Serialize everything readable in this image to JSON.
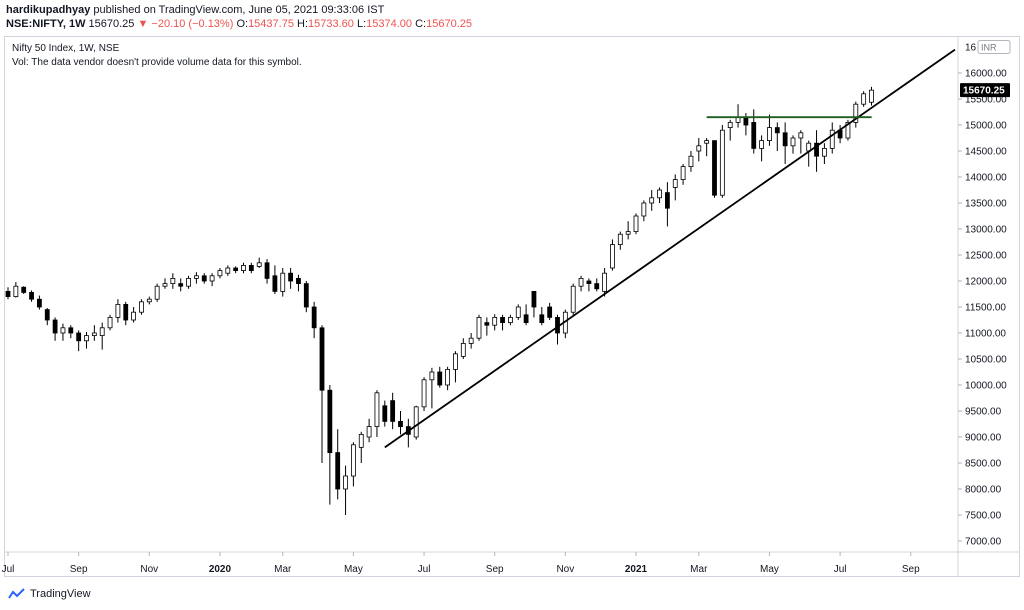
{
  "header": {
    "author": "hardikupadhyay",
    "published_text": "published on TradingView.com, June 05, 2021 09:33:06 IST",
    "symbol": "NSE:NIFTY, 1W",
    "last": "15670.25",
    "change_arrow": "▼",
    "change": "−20.10 (−0.13%)",
    "o_label": "O:",
    "o_value": "15437.75",
    "h_label": "H:",
    "h_value": "15733.60",
    "l_label": "L:",
    "l_value": "15374.00",
    "c_label": "C:",
    "c_value": "15670.25"
  },
  "legend": {
    "title": "Nifty 50 Index, 1W, NSE",
    "volume_note": "Vol: The data vendor doesn't provide volume data for this symbol."
  },
  "footer": {
    "brand": "TradingView"
  },
  "colors": {
    "up_body": "#ffffff",
    "down_body": "#000000",
    "wick": "#000000",
    "trendline": "#000000",
    "resistance": "#1b5e20",
    "price_tag_bg": "#000000",
    "price_tag_text": "#ffffff"
  },
  "chart_data": {
    "type": "candlestick",
    "currency": "INR",
    "ylim": [
      6700,
      16500
    ],
    "y_ticks": [
      "7000.00",
      "7500.00",
      "8000.00",
      "8500.00",
      "9000.00",
      "9500.00",
      "10000.00",
      "10500.00",
      "11000.00",
      "11500.00",
      "12000.00",
      "12500.00",
      "13000.00",
      "13500.00",
      "14000.00",
      "14500.00",
      "15000.00",
      "15500.00",
      "16000.00"
    ],
    "y_top_label": "16",
    "last_price_label": "15670.25",
    "last_price": 15670.25,
    "x_ticks": [
      {
        "label": "Jul",
        "bar": 0,
        "bold": false
      },
      {
        "label": "Sep",
        "bar": 9,
        "bold": false
      },
      {
        "label": "Nov",
        "bar": 18,
        "bold": false
      },
      {
        "label": "2020",
        "bar": 27,
        "bold": true
      },
      {
        "label": "Mar",
        "bar": 35,
        "bold": false
      },
      {
        "label": "May",
        "bar": 44,
        "bold": false
      },
      {
        "label": "Jul",
        "bar": 53,
        "bold": false
      },
      {
        "label": "Sep",
        "bar": 62,
        "bold": false
      },
      {
        "label": "Nov",
        "bar": 71,
        "bold": false
      },
      {
        "label": "2021",
        "bar": 80,
        "bold": true
      },
      {
        "label": "Mar",
        "bar": 88,
        "bold": false
      },
      {
        "label": "May",
        "bar": 97,
        "bold": false
      },
      {
        "label": "Jul",
        "bar": 106,
        "bold": false
      },
      {
        "label": "Sep",
        "bar": 115,
        "bold": false
      }
    ],
    "candles": [
      [
        11800,
        11880,
        11650,
        11700
      ],
      [
        11700,
        11980,
        11680,
        11900
      ],
      [
        11880,
        11900,
        11750,
        11780
      ],
      [
        11780,
        11820,
        11600,
        11650
      ],
      [
        11650,
        11720,
        11450,
        11500
      ],
      [
        11450,
        11480,
        11150,
        11250
      ],
      [
        11250,
        11300,
        10850,
        11000
      ],
      [
        11000,
        11180,
        10850,
        11100
      ],
      [
        11100,
        11150,
        10900,
        11000
      ],
      [
        11000,
        11050,
        10650,
        10850
      ],
      [
        10850,
        11020,
        10700,
        10950
      ],
      [
        10950,
        11150,
        10850,
        11000
      ],
      [
        10950,
        11200,
        10680,
        11100
      ],
      [
        11100,
        11350,
        11050,
        11300
      ],
      [
        11300,
        11650,
        11200,
        11550
      ],
      [
        11550,
        11600,
        11150,
        11250
      ],
      [
        11250,
        11500,
        11200,
        11400
      ],
      [
        11400,
        11650,
        11350,
        11600
      ],
      [
        11600,
        11700,
        11550,
        11650
      ],
      [
        11650,
        11950,
        11600,
        11900
      ],
      [
        11900,
        12050,
        11850,
        11950
      ],
      [
        11950,
        12150,
        11850,
        12050
      ],
      [
        11950,
        12050,
        11800,
        11900
      ],
      [
        11900,
        12100,
        11850,
        12050
      ],
      [
        12050,
        12170,
        11950,
        12100
      ],
      [
        12100,
        12150,
        11950,
        12000
      ],
      [
        12000,
        12150,
        11900,
        12100
      ],
      [
        12100,
        12250,
        12050,
        12200
      ],
      [
        12150,
        12300,
        12100,
        12250
      ],
      [
        12250,
        12280,
        12150,
        12200
      ],
      [
        12200,
        12350,
        12150,
        12300
      ],
      [
        12300,
        12350,
        12150,
        12200
      ],
      [
        12280,
        12450,
        12250,
        12350
      ],
      [
        12350,
        12420,
        11950,
        12050
      ],
      [
        12100,
        12300,
        11750,
        11800
      ],
      [
        11800,
        12250,
        11700,
        12150
      ],
      [
        12150,
        12250,
        11850,
        12000
      ],
      [
        12050,
        12120,
        11800,
        11950
      ],
      [
        11950,
        12000,
        11400,
        11500
      ],
      [
        11500,
        11600,
        10900,
        11100
      ],
      [
        11100,
        11150,
        8500,
        9900
      ],
      [
        9900,
        10000,
        7700,
        8700
      ],
      [
        8700,
        9150,
        7800,
        8000
      ],
      [
        8000,
        8450,
        7500,
        8250
      ],
      [
        8250,
        8900,
        8050,
        8850
      ],
      [
        8800,
        9100,
        8500,
        9050
      ],
      [
        9000,
        9350,
        8900,
        9200
      ],
      [
        9200,
        9900,
        9000,
        9850
      ],
      [
        9600,
        9700,
        9200,
        9300
      ],
      [
        9700,
        9850,
        9150,
        9300
      ],
      [
        9300,
        9500,
        9050,
        9200
      ],
      [
        9200,
        9350,
        8800,
        9050
      ],
      [
        9000,
        9600,
        8950,
        9580
      ],
      [
        9580,
        10150,
        9500,
        10100
      ],
      [
        10100,
        10330,
        9550,
        10250
      ],
      [
        10250,
        10350,
        9950,
        10000
      ],
      [
        10000,
        10350,
        9900,
        10300
      ],
      [
        10300,
        10650,
        10050,
        10600
      ],
      [
        10550,
        10900,
        10500,
        10800
      ],
      [
        10800,
        11000,
        10700,
        10900
      ],
      [
        10900,
        11350,
        10850,
        11300
      ],
      [
        11200,
        11300,
        10950,
        11150
      ],
      [
        11150,
        11360,
        11050,
        11300
      ],
      [
        11300,
        11350,
        11050,
        11200
      ],
      [
        11200,
        11350,
        11150,
        11300
      ],
      [
        11300,
        11550,
        11250,
        11500
      ],
      [
        11350,
        11550,
        11150,
        11200
      ],
      [
        11800,
        11800,
        11300,
        11500
      ],
      [
        11350,
        11500,
        11150,
        11200
      ],
      [
        11500,
        11580,
        11250,
        11300
      ],
      [
        11300,
        11350,
        10780,
        11000
      ],
      [
        11000,
        11450,
        10900,
        11400
      ],
      [
        11400,
        11950,
        11350,
        11900
      ],
      [
        11900,
        12100,
        11800,
        12050
      ],
      [
        12000,
        12050,
        11800,
        11950
      ],
      [
        11950,
        12050,
        11800,
        11850
      ],
      [
        11800,
        12250,
        11700,
        12150
      ],
      [
        12250,
        12800,
        12200,
        12700
      ],
      [
        12700,
        12950,
        12600,
        12900
      ],
      [
        12900,
        13150,
        12800,
        12950
      ],
      [
        12950,
        13300,
        12900,
        13250
      ],
      [
        13250,
        13550,
        13150,
        13500
      ],
      [
        13500,
        13750,
        13350,
        13600
      ],
      [
        13600,
        13800,
        13500,
        13750
      ],
      [
        13700,
        13900,
        13050,
        13400
      ],
      [
        13800,
        14050,
        13550,
        13950
      ],
      [
        13950,
        14250,
        13850,
        14200
      ],
      [
        14200,
        14500,
        14100,
        14400
      ],
      [
        14500,
        14750,
        14300,
        14600
      ],
      [
        14650,
        14750,
        14400,
        14700
      ],
      [
        14700,
        14650,
        13600,
        13650
      ],
      [
        13650,
        15000,
        13600,
        14900
      ],
      [
        14950,
        15100,
        14700,
        15050
      ],
      [
        15050,
        15400,
        14950,
        15150
      ],
      [
        15150,
        15230,
        14800,
        15000
      ],
      [
        15050,
        15300,
        14450,
        14550
      ],
      [
        14550,
        14800,
        14300,
        14700
      ],
      [
        14700,
        15200,
        14600,
        14950
      ],
      [
        14950,
        15050,
        14500,
        14850
      ],
      [
        14850,
        15050,
        14250,
        14600
      ],
      [
        14600,
        14800,
        14450,
        14750
      ],
      [
        14750,
        14900,
        14450,
        14850
      ],
      [
        14500,
        14700,
        14200,
        14650
      ],
      [
        14650,
        14900,
        14100,
        14400
      ],
      [
        14400,
        14650,
        14250,
        14550
      ],
      [
        14550,
        15050,
        14450,
        14900
      ],
      [
        14900,
        15000,
        14650,
        14750
      ],
      [
        14750,
        15100,
        14700,
        15050
      ],
      [
        15050,
        15450,
        14950,
        15400
      ],
      [
        15400,
        15650,
        15350,
        15600
      ],
      [
        15437.75,
        15733.6,
        15374,
        15670.25
      ]
    ]
  }
}
